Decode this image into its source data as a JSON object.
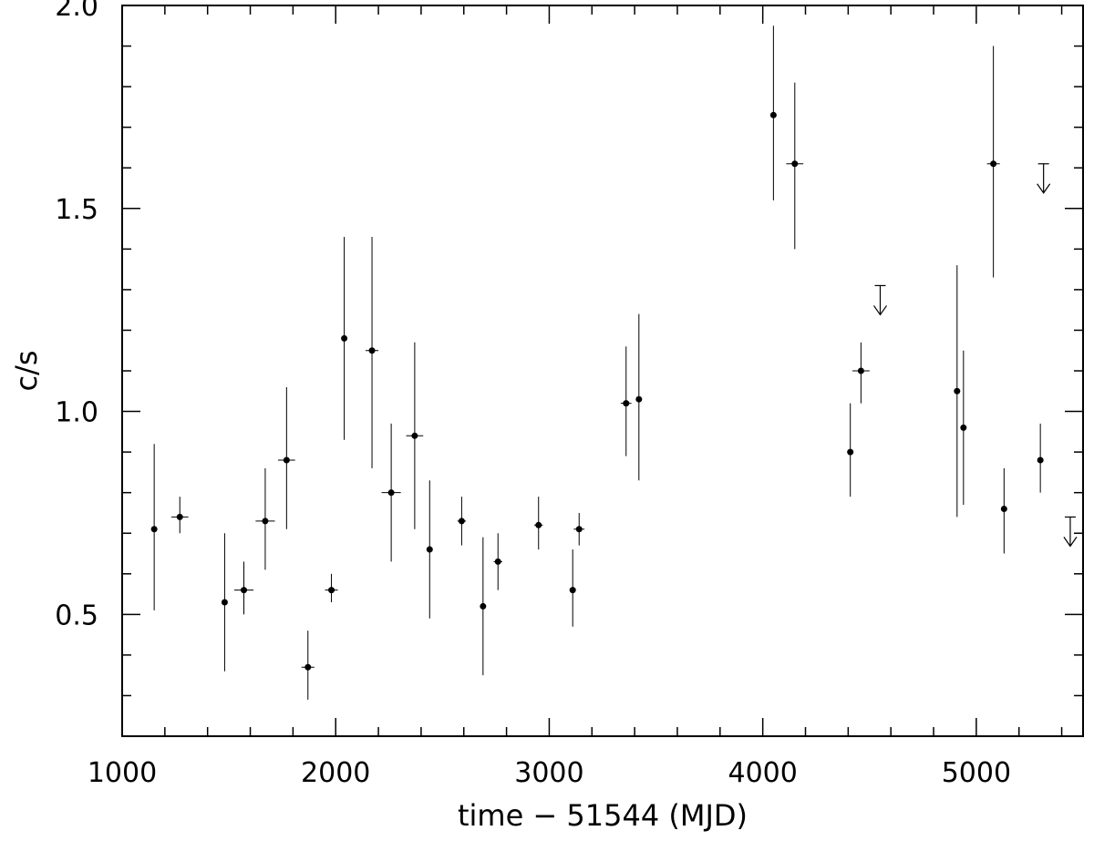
{
  "chart_data": {
    "type": "scatter",
    "xlabel": "time − 51544 (MJD)",
    "ylabel": "c/s",
    "xlim": [
      1000,
      5500
    ],
    "ylim": [
      0.2,
      2.0
    ],
    "x_ticks": [
      "1000",
      "2000",
      "3000",
      "4000",
      "5000"
    ],
    "y_ticks": [
      "0.5",
      "1.0",
      "1.5",
      "2.0"
    ],
    "grid": false,
    "points": [
      {
        "x": 1150,
        "y": 0.71,
        "ylo": 0.51,
        "yhi": 0.92,
        "xerr": 0
      },
      {
        "x": 1270,
        "y": 0.74,
        "ylo": 0.7,
        "yhi": 0.79,
        "xerr": 40
      },
      {
        "x": 1480,
        "y": 0.53,
        "ylo": 0.36,
        "yhi": 0.7,
        "xerr": 0
      },
      {
        "x": 1570,
        "y": 0.56,
        "ylo": 0.5,
        "yhi": 0.63,
        "xerr": 45
      },
      {
        "x": 1670,
        "y": 0.73,
        "ylo": 0.61,
        "yhi": 0.86,
        "xerr": 45
      },
      {
        "x": 1770,
        "y": 0.88,
        "ylo": 0.71,
        "yhi": 1.06,
        "xerr": 40
      },
      {
        "x": 1870,
        "y": 0.37,
        "ylo": 0.29,
        "yhi": 0.46,
        "xerr": 30
      },
      {
        "x": 1980,
        "y": 0.56,
        "ylo": 0.53,
        "yhi": 0.6,
        "xerr": 30
      },
      {
        "x": 2040,
        "y": 1.18,
        "ylo": 0.93,
        "yhi": 1.43,
        "xerr": 0
      },
      {
        "x": 2170,
        "y": 1.15,
        "ylo": 0.86,
        "yhi": 1.43,
        "xerr": 30
      },
      {
        "x": 2260,
        "y": 0.8,
        "ylo": 0.63,
        "yhi": 0.97,
        "xerr": 45
      },
      {
        "x": 2370,
        "y": 0.94,
        "ylo": 0.71,
        "yhi": 1.17,
        "xerr": 40
      },
      {
        "x": 2440,
        "y": 0.66,
        "ylo": 0.49,
        "yhi": 0.83,
        "xerr": 0
      },
      {
        "x": 2590,
        "y": 0.73,
        "ylo": 0.67,
        "yhi": 0.79,
        "xerr": 20
      },
      {
        "x": 2690,
        "y": 0.52,
        "ylo": 0.35,
        "yhi": 0.69,
        "xerr": 0
      },
      {
        "x": 2760,
        "y": 0.63,
        "ylo": 0.56,
        "yhi": 0.7,
        "xerr": 20
      },
      {
        "x": 2950,
        "y": 0.72,
        "ylo": 0.66,
        "yhi": 0.79,
        "xerr": 20
      },
      {
        "x": 3110,
        "y": 0.56,
        "ylo": 0.47,
        "yhi": 0.66,
        "xerr": 0
      },
      {
        "x": 3140,
        "y": 0.71,
        "ylo": 0.67,
        "yhi": 0.75,
        "xerr": 25
      },
      {
        "x": 3360,
        "y": 1.02,
        "ylo": 0.89,
        "yhi": 1.16,
        "xerr": 25
      },
      {
        "x": 3420,
        "y": 1.03,
        "ylo": 0.83,
        "yhi": 1.24,
        "xerr": 0
      },
      {
        "x": 4050,
        "y": 1.73,
        "ylo": 1.52,
        "yhi": 1.95,
        "xerr": 0
      },
      {
        "x": 4150,
        "y": 1.61,
        "ylo": 1.4,
        "yhi": 1.81,
        "xerr": 40
      },
      {
        "x": 4410,
        "y": 0.9,
        "ylo": 0.79,
        "yhi": 1.02,
        "xerr": 0
      },
      {
        "x": 4460,
        "y": 1.1,
        "ylo": 1.02,
        "yhi": 1.17,
        "xerr": 40
      },
      {
        "x": 4910,
        "y": 1.05,
        "ylo": 0.74,
        "yhi": 1.36,
        "xerr": 0
      },
      {
        "x": 4940,
        "y": 0.96,
        "ylo": 0.77,
        "yhi": 1.15,
        "xerr": 0
      },
      {
        "x": 5080,
        "y": 1.61,
        "ylo": 1.33,
        "yhi": 1.9,
        "xerr": 30
      },
      {
        "x": 5130,
        "y": 0.76,
        "ylo": 0.65,
        "yhi": 0.86,
        "xerr": 0
      },
      {
        "x": 5300,
        "y": 0.88,
        "ylo": 0.8,
        "yhi": 0.97,
        "xerr": 0
      }
    ],
    "upper_limits": [
      {
        "x": 4550,
        "y": 1.31
      },
      {
        "x": 5315,
        "y": 1.61
      },
      {
        "x": 5440,
        "y": 0.74
      }
    ]
  }
}
